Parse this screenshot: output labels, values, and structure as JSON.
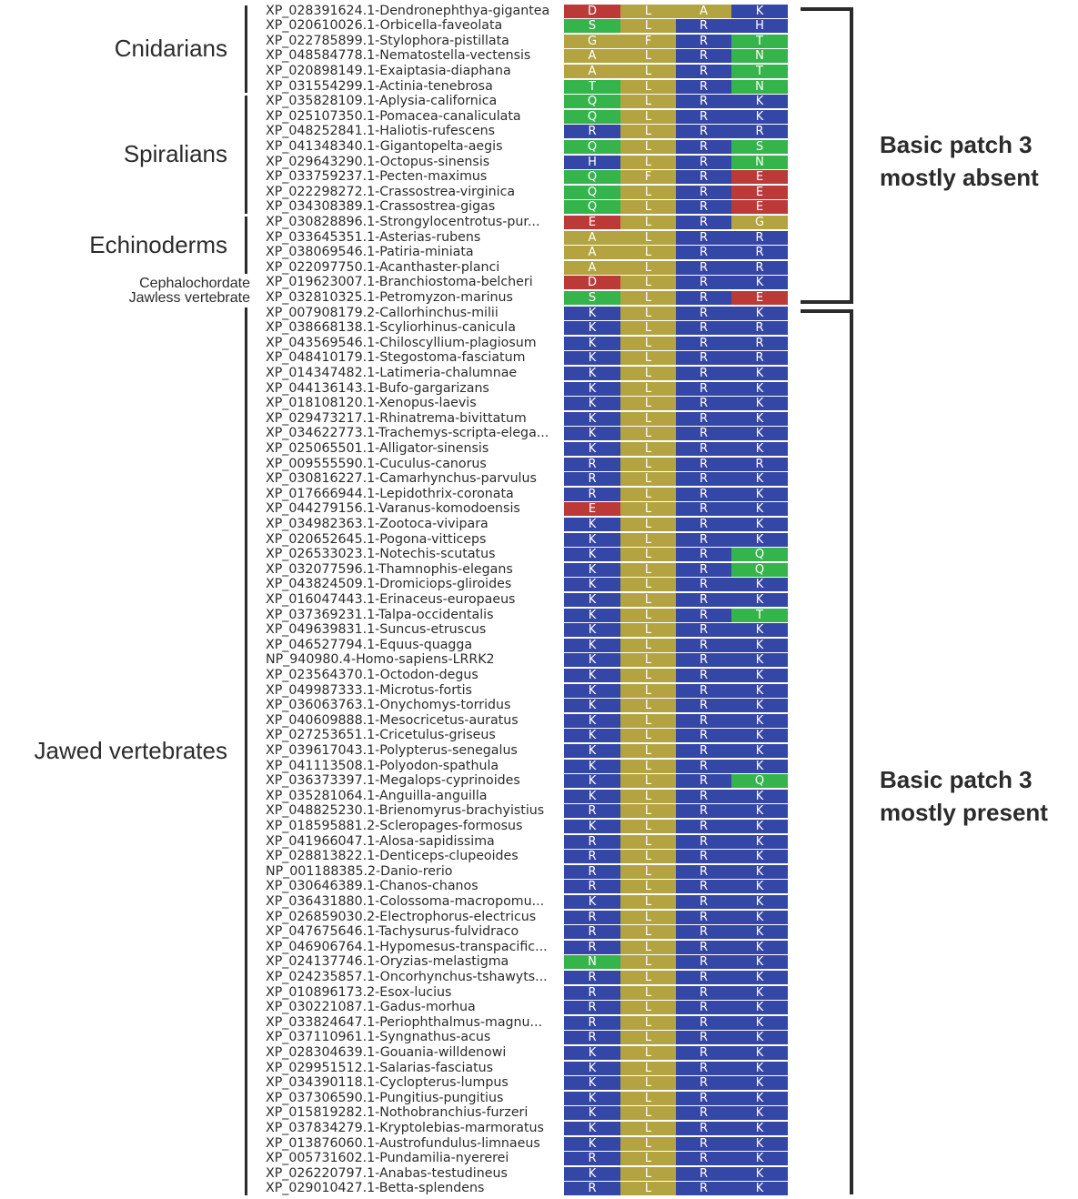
{
  "colors": {
    "A": "#b3a441",
    "L": "#b3a441",
    "F": "#b3a441",
    "G": "#b3a441",
    "R": "#3446a6",
    "K": "#3446a6",
    "H": "#3446a6",
    "Q": "#35b44c",
    "S": "#35b44c",
    "T": "#35b44c",
    "N": "#35b44c",
    "D": "#bb3a38",
    "E": "#bb3a38"
  },
  "groups": [
    {
      "label": "Cnidarians",
      "size": "big",
      "start": 0,
      "end": 5,
      "bar": true
    },
    {
      "label": "Spiralians",
      "size": "big",
      "start": 6,
      "end": 13,
      "bar": true
    },
    {
      "label": "Echinoderms",
      "size": "big",
      "start": 14,
      "end": 17,
      "bar": true
    },
    {
      "label": "Cephalochordate",
      "size": "small",
      "start": 18,
      "end": 18,
      "bar": false
    },
    {
      "label": "Jawless vertebrate",
      "size": "small",
      "start": 19,
      "end": 19,
      "bar": false
    },
    {
      "label": "Jawed vertebrates",
      "size": "big",
      "start": 20,
      "end": 78,
      "bar": true
    }
  ],
  "annotations": [
    {
      "line1": "Basic patch 3",
      "line2": "mostly absent",
      "start": 0,
      "end": 19
    },
    {
      "line1": "Basic patch 3",
      "line2": "mostly present",
      "start": 20,
      "end": 78
    }
  ],
  "rows": [
    {
      "name": "XP_028391624.1-Dendronephthya-gigantea",
      "seq": "DLAK"
    },
    {
      "name": "XP_020610026.1-Orbicella-faveolata",
      "seq": "SLRH"
    },
    {
      "name": "XP_022785899.1-Stylophora-pistillata",
      "seq": "GFRT"
    },
    {
      "name": "XP_048584778.1-Nematostella-vectensis",
      "seq": "ALRN"
    },
    {
      "name": "XP_020898149.1-Exaiptasia-diaphana",
      "seq": "ALRT"
    },
    {
      "name": "XP_031554299.1-Actinia-tenebrosa",
      "seq": "TLRN"
    },
    {
      "name": "XP_035828109.1-Aplysia-californica",
      "seq": "QLRK"
    },
    {
      "name": "XP_025107350.1-Pomacea-canaliculata",
      "seq": "QLRK"
    },
    {
      "name": "XP_048252841.1-Haliotis-rufescens",
      "seq": "RLRR"
    },
    {
      "name": "XP_041348340.1-Gigantopelta-aegis",
      "seq": "QLRS"
    },
    {
      "name": "XP_029643290.1-Octopus-sinensis",
      "seq": "HLRN"
    },
    {
      "name": "XP_033759237.1-Pecten-maximus",
      "seq": "QFRE"
    },
    {
      "name": "XP_022298272.1-Crassostrea-virginica",
      "seq": "QLRE"
    },
    {
      "name": "XP_034308389.1-Crassostrea-gigas",
      "seq": "QLRE"
    },
    {
      "name": "XP_030828896.1-Strongylocentrotus-pur...",
      "seq": "ELRG"
    },
    {
      "name": "XP_033645351.1-Asterias-rubens",
      "seq": "ALRR"
    },
    {
      "name": "XP_038069546.1-Patiria-miniata",
      "seq": "ALRR"
    },
    {
      "name": "XP_022097750.1-Acanthaster-planci",
      "seq": "ALRR"
    },
    {
      "name": "XP_019623007.1-Branchiostoma-belcheri",
      "seq": "DLRK"
    },
    {
      "name": "XP_032810325.1-Petromyzon-marinus",
      "seq": "SLRE"
    },
    {
      "name": "XP_007908179.2-Callorhinchus-milii",
      "seq": "KLRK"
    },
    {
      "name": "XP_038668138.1-Scyliorhinus-canicula",
      "seq": "KLRR"
    },
    {
      "name": "XP_043569546.1-Chiloscyllium-plagiosum",
      "seq": "KLRR"
    },
    {
      "name": "XP_048410179.1-Stegostoma-fasciatum",
      "seq": "KLRR"
    },
    {
      "name": "XP_014347482.1-Latimeria-chalumnae",
      "seq": "KLRK"
    },
    {
      "name": "XP_044136143.1-Bufo-gargarizans",
      "seq": "KLRK"
    },
    {
      "name": "XP_018108120.1-Xenopus-laevis",
      "seq": "KLRK"
    },
    {
      "name": "XP_029473217.1-Rhinatrema-bivittatum",
      "seq": "KLRK"
    },
    {
      "name": "XP_034622773.1-Trachemys-scripta-elega...",
      "seq": "KLRK"
    },
    {
      "name": "XP_025065501.1-Alligator-sinensis",
      "seq": "KLRK"
    },
    {
      "name": "XP_009555590.1-Cuculus-canorus",
      "seq": "RLRR"
    },
    {
      "name": "XP_030816227.1-Camarhynchus-parvulus",
      "seq": "RLRK"
    },
    {
      "name": "XP_017666944.1-Lepidothrix-coronata",
      "seq": "RLRK"
    },
    {
      "name": "XP_044279156.1-Varanus-komodoensis",
      "seq": "ELRK"
    },
    {
      "name": "XP_034982363.1-Zootoca-vivipara",
      "seq": "KLRK"
    },
    {
      "name": "XP_020652645.1-Pogona-vitticeps",
      "seq": "KLRK"
    },
    {
      "name": "XP_026533023.1-Notechis-scutatus",
      "seq": "KLRQ"
    },
    {
      "name": "XP_032077596.1-Thamnophis-elegans",
      "seq": "KLRQ"
    },
    {
      "name": "XP_043824509.1-Dromiciops-gliroides",
      "seq": "KLRK"
    },
    {
      "name": "XP_016047443.1-Erinaceus-europaeus",
      "seq": "KLRK"
    },
    {
      "name": "XP_037369231.1-Talpa-occidentalis",
      "seq": "KLRT"
    },
    {
      "name": "XP_049639831.1-Suncus-etruscus",
      "seq": "KLRK"
    },
    {
      "name": "XP_046527794.1-Equus-quagga",
      "seq": "KLRK"
    },
    {
      "name": "NP_940980.4-Homo-sapiens-LRRK2",
      "seq": "KLRK"
    },
    {
      "name": "XP_023564370.1-Octodon-degus",
      "seq": "KLRK"
    },
    {
      "name": "XP_049987333.1-Microtus-fortis",
      "seq": "KLRK"
    },
    {
      "name": "XP_036063763.1-Onychomys-torridus",
      "seq": "KLRK"
    },
    {
      "name": "XP_040609888.1-Mesocricetus-auratus",
      "seq": "KLRK"
    },
    {
      "name": "XP_027253651.1-Cricetulus-griseus",
      "seq": "KLRK"
    },
    {
      "name": "XP_039617043.1-Polypterus-senegalus",
      "seq": "KLRK"
    },
    {
      "name": "XP_041113508.1-Polyodon-spathula",
      "seq": "KLRK"
    },
    {
      "name": "XP_036373397.1-Megalops-cyprinoides",
      "seq": "KLRQ"
    },
    {
      "name": "XP_035281064.1-Anguilla-anguilla",
      "seq": "KLRK"
    },
    {
      "name": "XP_048825230.1-Brienomyrus-brachyistius",
      "seq": "RLRK"
    },
    {
      "name": "XP_018595881.2-Scleropages-formosus",
      "seq": "KLRK"
    },
    {
      "name": "XP_041966047.1-Alosa-sapidissima",
      "seq": "RLRK"
    },
    {
      "name": "XP_028813822.1-Denticeps-clupeoides",
      "seq": "RLRK"
    },
    {
      "name": "NP_001188385.2-Danio-rerio",
      "seq": "RLRK"
    },
    {
      "name": "XP_030646389.1-Chanos-chanos",
      "seq": "RLRK"
    },
    {
      "name": "XP_036431880.1-Colossoma-macropomu...",
      "seq": "KLRK"
    },
    {
      "name": "XP_026859030.2-Electrophorus-electricus",
      "seq": "RLRK"
    },
    {
      "name": "XP_047675646.1-Tachysurus-fulvidraco",
      "seq": "RLRK"
    },
    {
      "name": "XP_046906764.1-Hypomesus-transpacific...",
      "seq": "RLRK"
    },
    {
      "name": "XP_024137746.1-Oryzias-melastigma",
      "seq": "NLRK"
    },
    {
      "name": "XP_024235857.1-Oncorhynchus-tshawyts...",
      "seq": "RLRK"
    },
    {
      "name": "XP_010896173.2-Esox-lucius",
      "seq": "RLRK"
    },
    {
      "name": "XP_030221087.1-Gadus-morhua",
      "seq": "RLRK"
    },
    {
      "name": "XP_033824647.1-Periophthalmus-magnu...",
      "seq": "RLRK"
    },
    {
      "name": "XP_037110961.1-Syngnathus-acus",
      "seq": "RLRK"
    },
    {
      "name": "XP_028304639.1-Gouania-willdenowi",
      "seq": "KLRK"
    },
    {
      "name": "XP_029951512.1-Salarias-fasciatus",
      "seq": "KLRK"
    },
    {
      "name": "XP_034390118.1-Cyclopterus-lumpus",
      "seq": "KLRK"
    },
    {
      "name": "XP_037306590.1-Pungitius-pungitius",
      "seq": "KLRK"
    },
    {
      "name": "XP_015819282.1-Nothobranchius-furzeri",
      "seq": "KLRK"
    },
    {
      "name": "XP_037834279.1-Kryptolebias-marmoratus",
      "seq": "KLRK"
    },
    {
      "name": "XP_013876060.1-Austrofundulus-limnaeus",
      "seq": "KLRK"
    },
    {
      "name": "XP_005731602.1-Pundamilia-nyererei",
      "seq": "RLRK"
    },
    {
      "name": "XP_026220797.1-Anabas-testudineus",
      "seq": "KLRK"
    },
    {
      "name": "XP_029010427.1-Betta-splendens",
      "seq": "RLRK"
    }
  ]
}
